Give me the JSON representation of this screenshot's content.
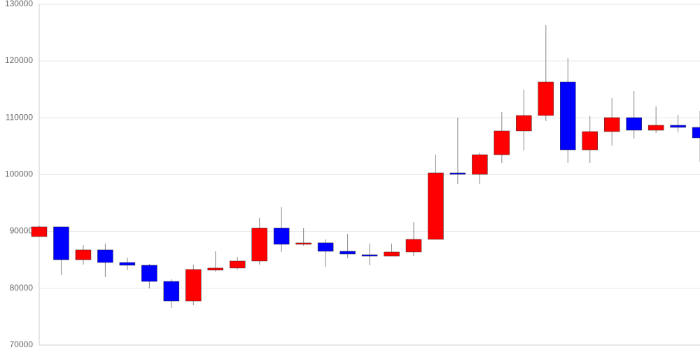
{
  "chart_data": {
    "type": "candlestick",
    "categories": [
      null,
      null,
      null,
      null,
      null,
      null,
      null,
      null,
      null,
      null,
      null,
      null,
      null,
      null,
      null,
      null,
      null,
      null,
      null,
      null,
      null,
      null,
      null,
      null,
      null,
      null,
      null,
      null,
      null,
      null,
      null
    ],
    "open": [
      89100,
      90820,
      85030,
      86760,
      84540,
      84050,
      81210,
      77760,
      83190,
      83560,
      84790,
      90580,
      87740,
      88000,
      86510,
      85900,
      85650,
      86390,
      88610,
      100310,
      100060,
      103510,
      107700,
      110410,
      116320,
      104370,
      107580,
      110040,
      107820,
      108690,
      108320
    ],
    "high": [
      91000,
      90820,
      87620,
      87870,
      85400,
      84290,
      81580,
      84170,
      86510,
      85520,
      92420,
      94270,
      90580,
      88610,
      89590,
      87870,
      87870,
      91690,
      103510,
      110040,
      103880,
      111030,
      114970,
      126300,
      120510,
      110290,
      113490,
      114720,
      112010,
      110530,
      111270
    ],
    "low": [
      89100,
      82320,
      84170,
      81950,
      83190,
      79980,
      76530,
      77020,
      82940,
      83310,
      84170,
      86390,
      87500,
      83800,
      85280,
      84050,
      85650,
      85650,
      88610,
      98340,
      98340,
      102030,
      104250,
      109430,
      102030,
      102030,
      105110,
      106350,
      107330,
      107450,
      102280
    ],
    "close": [
      90820,
      85030,
      86760,
      84540,
      84050,
      81210,
      77760,
      83310,
      83560,
      84790,
      90580,
      87740,
      87990,
      86510,
      86020,
      85650,
      86390,
      88610,
      100310,
      100060,
      103510,
      107700,
      110410,
      116320,
      104370,
      107580,
      110040,
      107820,
      108690,
      108320,
      106470
    ],
    "up_color": "#ff0000",
    "down_color": "#0000ff",
    "wick_color": "#888888",
    "ylim": [
      70000,
      130000
    ],
    "yticks": [
      70000,
      80000,
      90000,
      100000,
      110000,
      120000,
      130000
    ],
    "grid": true
  }
}
